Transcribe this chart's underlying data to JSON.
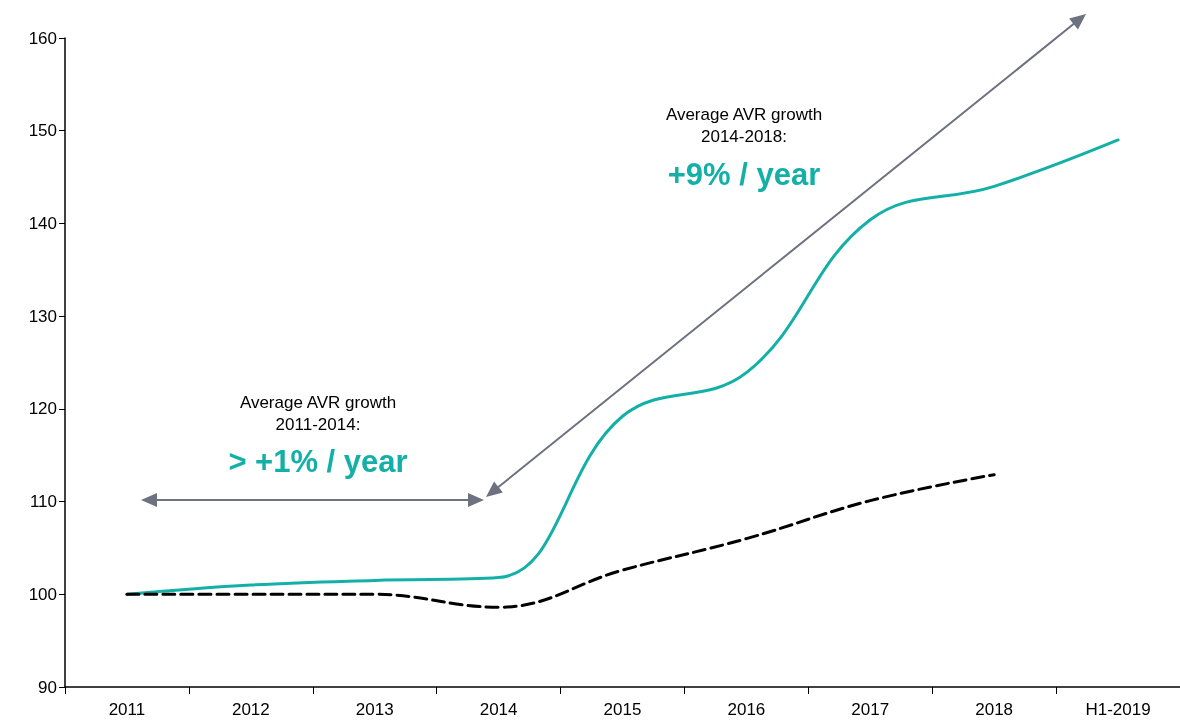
{
  "chart_data": {
    "type": "line",
    "categories": [
      "2011",
      "2012",
      "2013",
      "2014",
      "2015",
      "2016",
      "2017",
      "2018",
      "H1-2019"
    ],
    "series": [
      {
        "color": "#14b0a8",
        "line_style": "solid",
        "values": [
          100,
          101,
          101.5,
          101.8,
          119.2,
          123.9,
          140.4,
          144,
          149
        ]
      },
      {
        "color": "#000000",
        "line_style": "dashed",
        "values": [
          100,
          100,
          100,
          98.6,
          102.6,
          106,
          110.1,
          112.9,
          null
        ]
      }
    ],
    "ylim": [
      90,
      160
    ],
    "yticks": [
      90,
      100,
      110,
      120,
      130,
      140,
      150,
      160
    ],
    "grid": false,
    "marker": "none",
    "annotations": [
      "Average AVR growth\n2011-2014:",
      "> +1% / year",
      "Average AVR growth\n2014-2018:",
      "+9% / year"
    ]
  }
}
